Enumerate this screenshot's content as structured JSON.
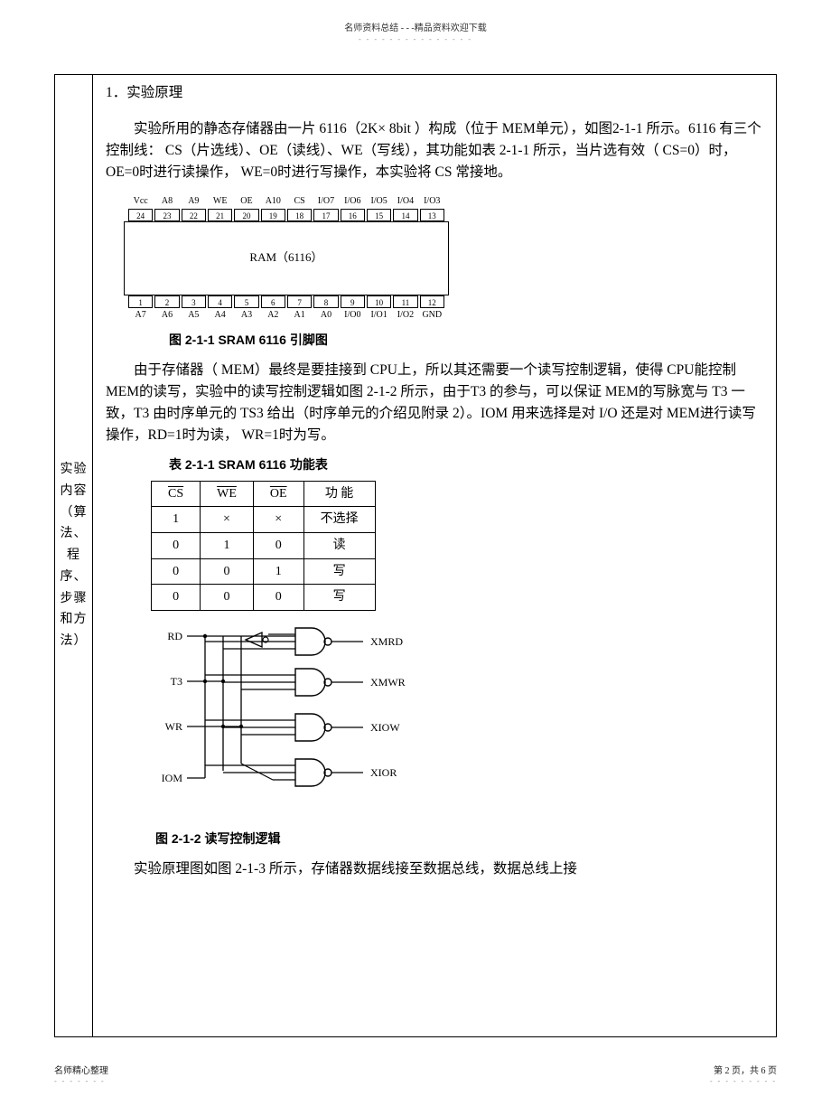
{
  "header": {
    "text": "名师资料总结 - - -精品资料欢迎下载",
    "dashes": "- - - - - - - - - - - - - - -"
  },
  "labelCell": "实验内容（算法、程序、步骤和方法）",
  "sectionTitle": "1．实验原理",
  "para1": "实验所用的静态存储器由一片 6116（2K× 8bit ）构成（位于 MEM单元），如图2-1-1 所示。6116 有三个控制线： CS（片选线）、OE（读线）、WE（写线），其功能如表 2-1-1 所示，当片选有效（ CS=0）时，OE=0时进行读操作， WE=0时进行写操作，本实验将 CS 常接地。",
  "chip": {
    "topLabels": [
      "Vcc",
      "A8",
      "A9",
      "WE",
      "OE",
      "A10",
      "CS",
      "I/O7",
      "I/O6",
      "I/O5",
      "I/O4",
      "I/O3"
    ],
    "topPins": [
      "24",
      "23",
      "22",
      "21",
      "20",
      "19",
      "18",
      "17",
      "16",
      "15",
      "14",
      "13"
    ],
    "body": "RAM（6116）",
    "botPins": [
      "1",
      "2",
      "3",
      "4",
      "5",
      "6",
      "7",
      "8",
      "9",
      "10",
      "11",
      "12"
    ],
    "botLabels": [
      "A7",
      "A6",
      "A5",
      "A4",
      "A3",
      "A2",
      "A1",
      "A0",
      "I/O0",
      "I/O1",
      "I/O2",
      "GND"
    ],
    "caption": "图 2-1-1   SRAM 6116 引脚图"
  },
  "para2": "由于存储器（ MEM）最终是要挂接到 CPU上，所以其还需要一个读写控制逻辑，使得 CPU能控制 MEM的读写，实验中的读写控制逻辑如图 2-1-2 所示，由于T3 的参与，可以保证 MEM的写脉宽与 T3 一致，T3 由时序单元的 TS3 给出（时序单元的介绍见附录 2）。IOM 用来选择是对 I/O 还是对 MEM进行读写操作，RD=1时为读， WR=1时为写。",
  "funcTable": {
    "title": "表 2-1-1   SRAM 6116 功能表",
    "headers": [
      "CS",
      "WE",
      "OE",
      "功 能"
    ],
    "rows": [
      [
        "1",
        "×",
        "×",
        "不选择"
      ],
      [
        "0",
        "1",
        "0",
        "读"
      ],
      [
        "0",
        "0",
        "1",
        "写"
      ],
      [
        "0",
        "0",
        "0",
        "写"
      ]
    ]
  },
  "logic": {
    "inputs": [
      "RD",
      "T3",
      "WR",
      "IOM"
    ],
    "outputs": [
      "XMRD",
      "XMWR",
      "XIOW",
      "XIOR"
    ],
    "caption": "图 2-1-2   读写控制逻辑"
  },
  "para3": "实验原理图如图 2-1-3 所示，存储器数据线接至数据总线，数据总线上接",
  "footer": {
    "left": "名师精心整理",
    "leftDashes": "- - - - - - -",
    "right": "第 2 页，共 6 页",
    "rightDashes": "- - - - - - - - -"
  }
}
